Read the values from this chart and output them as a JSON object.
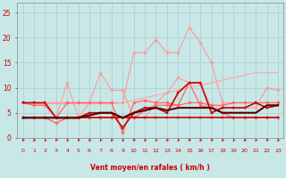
{
  "x": [
    0,
    1,
    2,
    3,
    4,
    5,
    6,
    7,
    8,
    9,
    10,
    11,
    12,
    13,
    14,
    15,
    16,
    17,
    18,
    19,
    20,
    21,
    22,
    23
  ],
  "series": [
    {
      "y": [
        7,
        7,
        7,
        7,
        7,
        7,
        7,
        7,
        7,
        7,
        17,
        17,
        19.5,
        17,
        17,
        22,
        19,
        15,
        7,
        7,
        7,
        7,
        7,
        7
      ],
      "color": "#FF9999",
      "lw": 0.8,
      "marker": "D",
      "ms": 1.8,
      "zorder": 2,
      "ls": "-"
    },
    {
      "y": [
        4,
        4,
        4,
        4,
        11,
        4,
        7,
        13,
        9.5,
        9.5,
        4,
        4,
        7,
        9,
        12,
        11,
        11,
        6,
        6,
        6,
        6,
        6,
        10,
        9.5
      ],
      "color": "#FF9999",
      "lw": 0.8,
      "marker": "D",
      "ms": 1.8,
      "zorder": 2,
      "ls": "-"
    },
    {
      "y": [
        7,
        6.5,
        6.5,
        4,
        7,
        7,
        7,
        7,
        7,
        1,
        7,
        7.5,
        7,
        7,
        6.5,
        7,
        7,
        6.5,
        6.5,
        7,
        7,
        7,
        7,
        7
      ],
      "color": "#FF6666",
      "lw": 0.9,
      "marker": "D",
      "ms": 1.8,
      "zorder": 3,
      "ls": "-"
    },
    {
      "y": [
        4,
        4,
        4,
        3,
        4,
        4,
        4,
        4,
        4,
        4,
        4,
        5.5,
        6.5,
        6.5,
        6.5,
        11,
        6.5,
        6,
        5,
        4,
        4,
        4,
        4,
        4
      ],
      "color": "#FF6666",
      "lw": 0.9,
      "marker": "D",
      "ms": 1.8,
      "zorder": 3,
      "ls": "-"
    },
    {
      "y": [
        4,
        4,
        4,
        4,
        4,
        4,
        4,
        4,
        4,
        4,
        4,
        4,
        4,
        4,
        4,
        4,
        4,
        4,
        4,
        4,
        4,
        4,
        4,
        4
      ],
      "color": "#CC0000",
      "lw": 1.2,
      "marker": "s",
      "ms": 1.8,
      "zorder": 4,
      "ls": "-"
    },
    {
      "y": [
        7,
        7,
        7,
        4,
        4,
        4,
        5,
        5,
        5,
        2,
        5,
        6,
        6,
        5,
        9,
        11,
        11,
        5,
        6,
        6,
        6,
        7,
        6,
        6.5
      ],
      "color": "#CC0000",
      "lw": 1.2,
      "marker": "s",
      "ms": 1.8,
      "zorder": 4,
      "ls": "-"
    },
    {
      "y": [
        4,
        4,
        4,
        4,
        4,
        4,
        4.5,
        5,
        5,
        4,
        5,
        5.5,
        6,
        5.5,
        6,
        6,
        6,
        6,
        5,
        5,
        5,
        5,
        6.5,
        6.5
      ],
      "color": "#550000",
      "lw": 1.5,
      "marker": null,
      "ms": 0,
      "zorder": 5,
      "ls": "-"
    },
    {
      "y": [
        7,
        6.8,
        6.8,
        6.8,
        6.8,
        6.8,
        6.8,
        6.8,
        6.8,
        7,
        7.5,
        8,
        8.5,
        9,
        9.5,
        10,
        10.5,
        11,
        11.5,
        12,
        12.5,
        13,
        13,
        13
      ],
      "color": "#FFAAAA",
      "lw": 0.9,
      "marker": null,
      "ms": 0,
      "zorder": 1,
      "ls": "-"
    }
  ],
  "xlabel": "Vent moyen/en rafales ( km/h )",
  "xlim": [
    -0.5,
    23.5
  ],
  "ylim": [
    0,
    27
  ],
  "yticks": [
    0,
    5,
    10,
    15,
    20,
    25
  ],
  "xticks": [
    0,
    1,
    2,
    3,
    4,
    5,
    6,
    7,
    8,
    9,
    10,
    11,
    12,
    13,
    14,
    15,
    16,
    17,
    18,
    19,
    20,
    21,
    22,
    23
  ],
  "bg_color": "#C8E8E8",
  "grid_color": "#AACCCC",
  "xlabel_color": "#CC0000",
  "tick_color": "#CC0000",
  "arrow_color": "#CC0000",
  "spine_color": "#888888"
}
